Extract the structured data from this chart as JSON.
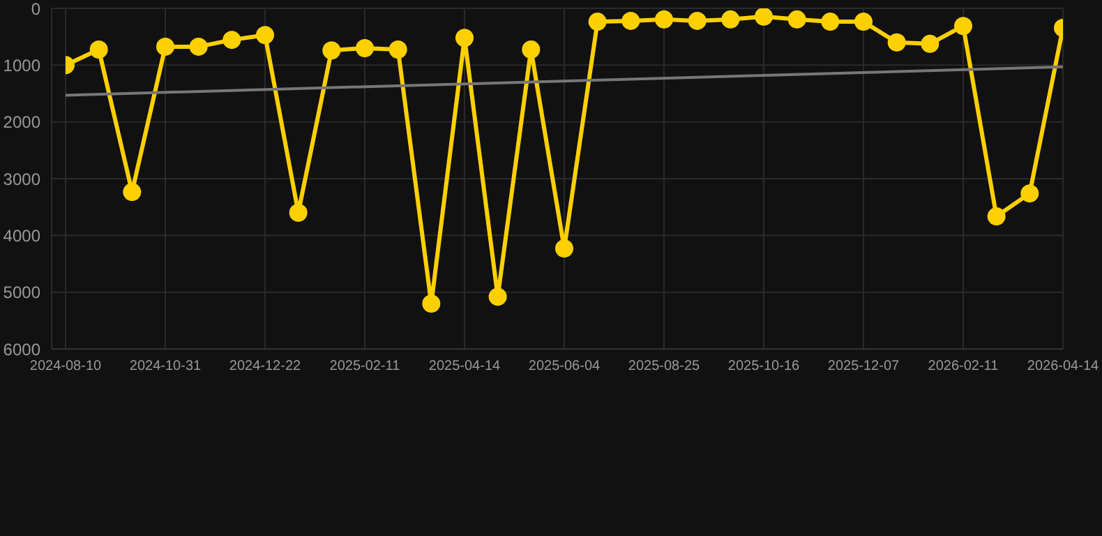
{
  "chart_data": {
    "type": "line",
    "categories": [
      "2024-08-10",
      null,
      null,
      "2024-10-31",
      null,
      null,
      "2024-12-22",
      null,
      null,
      "2025-02-11",
      null,
      null,
      "2025-04-14",
      null,
      null,
      "2025-06-04",
      null,
      null,
      "2025-08-25",
      null,
      null,
      "2025-10-16",
      null,
      null,
      "2025-12-07",
      null,
      null,
      "2026-02-11",
      null,
      null,
      "2026-04-14"
    ],
    "series": [
      {
        "color": "#ffd000",
        "marker": "circle",
        "values": [
          1000,
          725,
          3235,
          675,
          675,
          555,
          470,
          3600,
          740,
          700,
          725,
          5200,
          520,
          5080,
          725,
          4230,
          235,
          220,
          195,
          220,
          195,
          145,
          195,
          235,
          235,
          600,
          625,
          310,
          3665,
          3260,
          345
        ]
      },
      {
        "color": "#777777",
        "marker": "none",
        "values": [
          1530,
          null,
          null,
          null,
          null,
          null,
          null,
          null,
          null,
          null,
          null,
          null,
          null,
          null,
          null,
          null,
          null,
          null,
          null,
          null,
          null,
          null,
          null,
          null,
          null,
          null,
          null,
          null,
          null,
          null,
          1030
        ]
      }
    ],
    "ylim": [
      6000,
      0
    ],
    "yticks": [
      0,
      1000,
      2000,
      3000,
      4000,
      5000,
      6000
    ],
    "grid": true
  }
}
